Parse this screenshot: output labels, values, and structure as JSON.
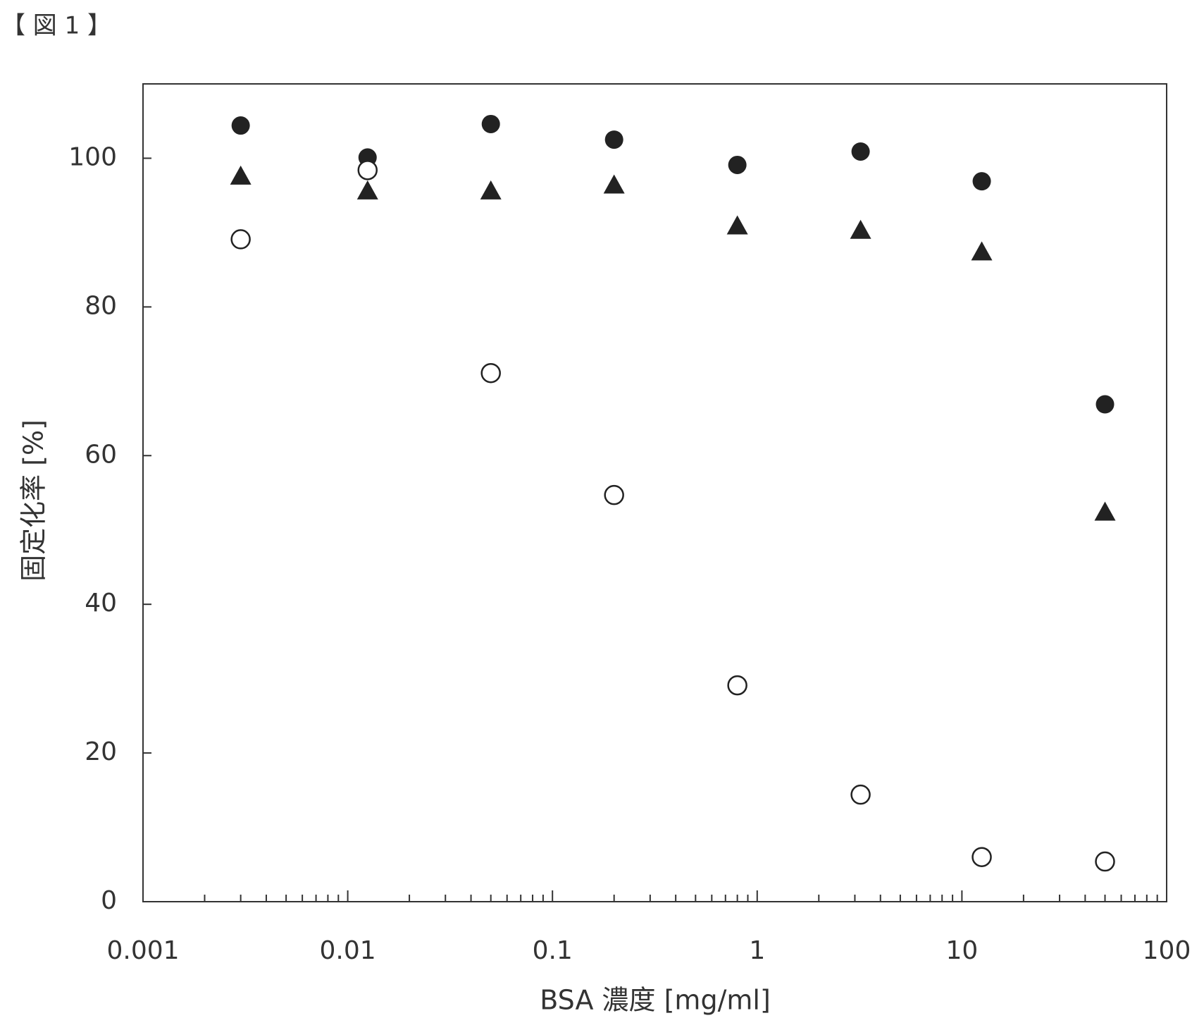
{
  "chart_data": {
    "type": "scatter",
    "title": "【 図 1 】",
    "x_label": "BSA 濃度 [mg/ml]",
    "y_label": "固定化率 [%]",
    "x": [
      0.003,
      0.0125,
      0.05,
      0.2,
      0.8,
      3.2,
      12.5,
      50
    ],
    "series": [
      {
        "marker": "filled-circle",
        "color": "#222222",
        "values": [
          104.4,
          100.1,
          104.6,
          102.5,
          99.1,
          100.9,
          96.9,
          66.9
        ]
      },
      {
        "marker": "triangle",
        "color": "#222222",
        "values": [
          97.5,
          95.5,
          95.5,
          96.3,
          90.8,
          90.2,
          87.3,
          52.3
        ]
      },
      {
        "marker": "open-circle",
        "color": "#222222",
        "values": [
          89.1,
          98.4,
          71.1,
          54.7,
          29.1,
          14.4,
          6.0,
          5.4
        ]
      }
    ],
    "x_log": true,
    "xlim": [
      0.001,
      100
    ],
    "xticks": [
      0.001,
      0.01,
      0.1,
      1,
      10,
      100
    ],
    "xminorticks": [
      0.002,
      0.003,
      0.004,
      0.005,
      0.006,
      0.007,
      0.008,
      0.009,
      0.02,
      0.03,
      0.04,
      0.05,
      0.06,
      0.07,
      0.08,
      0.09,
      0.2,
      0.3,
      0.4,
      0.5,
      0.6,
      0.7,
      0.8,
      0.9,
      2,
      3,
      4,
      5,
      6,
      7,
      8,
      9,
      20,
      30,
      40,
      50,
      60,
      70,
      80,
      90
    ],
    "ylim": [
      0,
      110
    ],
    "yticks": [
      0,
      20,
      40,
      60,
      80,
      100
    ],
    "grid": false
  }
}
